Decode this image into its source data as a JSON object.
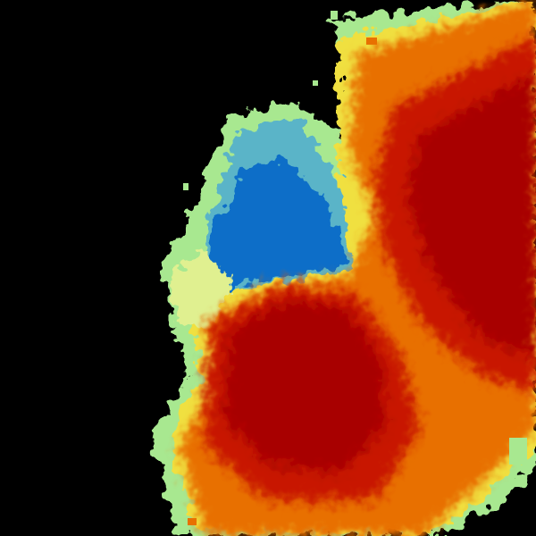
{
  "image": {
    "background": "#000000",
    "palette": {
      "dark_red": "#a80000",
      "red": "#c81800",
      "orange": "#e87000",
      "yellow": "#f0e040",
      "light_green": "#a8e890",
      "cyan": "#5ab4c8",
      "blue": "#0a6ec8"
    }
  }
}
